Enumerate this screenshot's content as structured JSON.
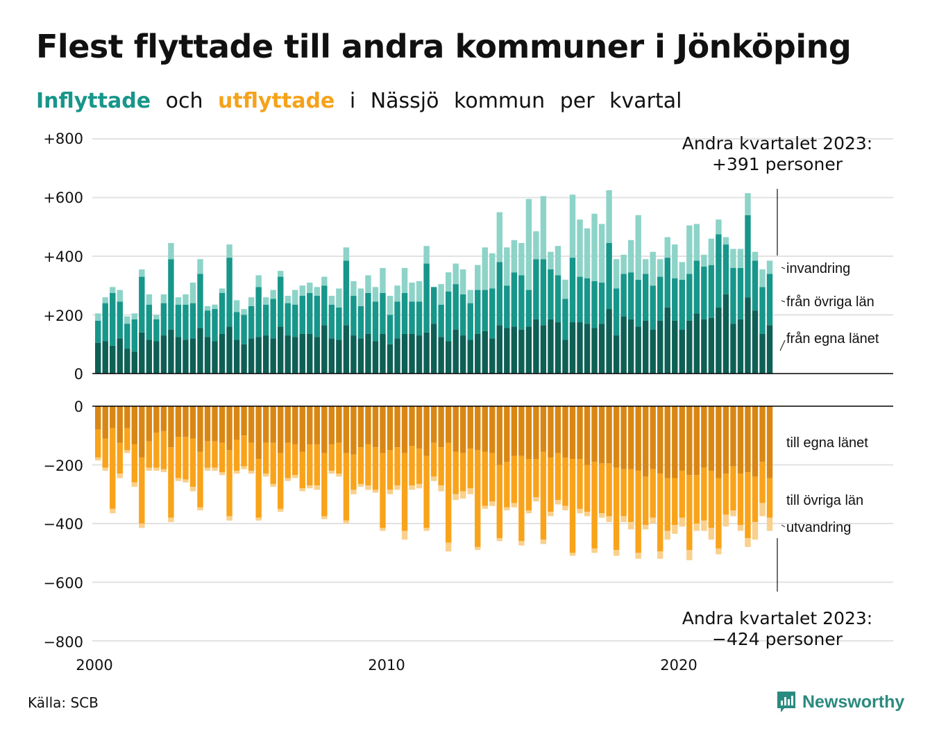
{
  "title": "Flest flyttade till andra kommuner i Jönköping",
  "subtitle": {
    "in_word": "Inflyttade",
    "and_word": "och",
    "out_word": "utflyttade",
    "rest_words": [
      "i",
      "Nässjö",
      "kommun",
      "per",
      "kvartal"
    ]
  },
  "source": "Källa: SCB",
  "logo_text": "Newsworthy",
  "colors": {
    "in_own": "#0e5f55",
    "in_other": "#17968a",
    "in_immig": "#8dd3c8",
    "out_own": "#d98714",
    "out_other": "#f9a31b",
    "out_emig": "#f9d08c",
    "grid": "#e2e2e2",
    "axis": "#000000"
  },
  "chart_data": {
    "type": "bar",
    "stacked": true,
    "x_ticks": [
      "2000",
      "2010",
      "2020"
    ],
    "y_ticks": [
      "+800",
      "+600",
      "+400",
      "+200",
      "0",
      "0",
      "−200",
      "−400",
      "−600",
      "−800"
    ],
    "top_ylim": [
      0,
      800
    ],
    "bottom_ylim": [
      -800,
      0
    ],
    "x_start": "2000 Q1",
    "x_end": "2023 Q2",
    "top_series_labels": [
      "invandring",
      "från övriga län",
      "från egna länet"
    ],
    "bottom_series_labels": [
      "till egna länet",
      "till övriga län",
      "utvandring"
    ],
    "annotation_top": [
      "Andra kvartalet 2023:",
      "+391 personer"
    ],
    "annotation_bottom": [
      "Andra kvartalet 2023:",
      "−424 personer"
    ],
    "inflow": {
      "from_own_county": [
        105,
        110,
        95,
        120,
        85,
        75,
        140,
        115,
        110,
        130,
        150,
        125,
        115,
        120,
        155,
        125,
        110,
        135,
        160,
        115,
        100,
        120,
        125,
        130,
        120,
        160,
        130,
        125,
        135,
        135,
        125,
        165,
        120,
        115,
        165,
        130,
        120,
        135,
        110,
        135,
        100,
        120,
        135,
        135,
        130,
        140,
        170,
        125,
        110,
        150,
        130,
        115,
        135,
        145,
        120,
        165,
        155,
        160,
        150,
        160,
        185,
        165,
        185,
        175,
        115,
        175,
        175,
        170,
        155,
        170,
        220,
        130,
        195,
        185,
        160,
        180,
        150,
        180,
        225,
        180,
        150,
        180,
        205,
        185,
        190,
        225,
        270,
        170,
        185,
        260,
        215,
        135,
        165
      ],
      "from_other_counties": [
        75,
        130,
        180,
        125,
        85,
        110,
        190,
        120,
        75,
        110,
        240,
        110,
        120,
        120,
        185,
        90,
        110,
        140,
        235,
        95,
        100,
        110,
        170,
        105,
        135,
        170,
        110,
        110,
        130,
        140,
        140,
        135,
        115,
        110,
        220,
        135,
        110,
        140,
        135,
        140,
        100,
        125,
        140,
        110,
        115,
        235,
        125,
        110,
        170,
        155,
        140,
        125,
        150,
        140,
        170,
        215,
        145,
        185,
        185,
        125,
        205,
        225,
        170,
        160,
        140,
        220,
        155,
        155,
        160,
        140,
        225,
        160,
        145,
        160,
        160,
        160,
        150,
        150,
        170,
        145,
        170,
        160,
        180,
        180,
        180,
        250,
        170,
        190,
        175,
        280,
        170,
        160,
        175
      ],
      "immigration": [
        25,
        20,
        20,
        40,
        25,
        20,
        25,
        35,
        15,
        30,
        55,
        25,
        35,
        70,
        50,
        15,
        15,
        15,
        45,
        40,
        20,
        30,
        40,
        25,
        30,
        20,
        25,
        50,
        35,
        35,
        30,
        30,
        30,
        65,
        45,
        50,
        60,
        60,
        50,
        85,
        65,
        55,
        85,
        65,
        70,
        60,
        0,
        70,
        65,
        70,
        85,
        45,
        85,
        145,
        120,
        170,
        130,
        110,
        110,
        310,
        95,
        215,
        60,
        100,
        65,
        215,
        195,
        170,
        230,
        200,
        180,
        100,
        65,
        110,
        220,
        50,
        115,
        60,
        70,
        115,
        60,
        165,
        125,
        40,
        90,
        50,
        25,
        65,
        65,
        75,
        30,
        60,
        45
      ],
      "total_q2_2023": 391
    },
    "outflow": {
      "to_own_county": [
        -80,
        -110,
        -75,
        -125,
        -75,
        -130,
        -175,
        -120,
        -90,
        -85,
        -140,
        -105,
        -105,
        -110,
        -155,
        -120,
        -120,
        -125,
        -150,
        -115,
        -100,
        -125,
        -180,
        -125,
        -125,
        -160,
        -125,
        -130,
        -155,
        -130,
        -130,
        -160,
        -130,
        -125,
        -160,
        -165,
        -140,
        -130,
        -140,
        -160,
        -150,
        -140,
        -160,
        -135,
        -145,
        -170,
        -125,
        -140,
        -125,
        -155,
        -160,
        -145,
        -150,
        -155,
        -160,
        -200,
        -190,
        -170,
        -170,
        -180,
        -180,
        -155,
        -175,
        -160,
        -175,
        -180,
        -180,
        -200,
        -190,
        -195,
        -195,
        -210,
        -215,
        -215,
        -220,
        -240,
        -215,
        -230,
        -245,
        -245,
        -220,
        -235,
        -235,
        -210,
        -220,
        -245,
        -230,
        -205,
        -230,
        -225,
        -240,
        -190,
        -245
      ],
      "to_other_counties": [
        -95,
        -100,
        -275,
        -105,
        -75,
        -130,
        -225,
        -90,
        -120,
        -130,
        -240,
        -140,
        -145,
        -165,
        -190,
        -90,
        -90,
        -100,
        -225,
        -105,
        -105,
        -95,
        -200,
        -105,
        -140,
        -190,
        -120,
        -105,
        -125,
        -140,
        -140,
        -215,
        -90,
        -105,
        -230,
        -120,
        -125,
        -140,
        -145,
        -255,
        -135,
        -130,
        -265,
        -135,
        -120,
        -245,
        -115,
        -130,
        -340,
        -145,
        -130,
        -135,
        -330,
        -185,
        -165,
        -250,
        -155,
        -160,
        -290,
        -175,
        -130,
        -300,
        -185,
        -160,
        -165,
        -320,
        -170,
        -160,
        -295,
        -170,
        -180,
        -280,
        -160,
        -180,
        -280,
        -165,
        -165,
        -265,
        -180,
        -160,
        -160,
        -255,
        -165,
        -180,
        -195,
        -240,
        -140,
        -150,
        -175,
        -225,
        -155,
        -140,
        -135
      ],
      "emigration": [
        -10,
        -10,
        -15,
        -15,
        -10,
        -15,
        -15,
        -10,
        -10,
        -10,
        -15,
        -10,
        -10,
        -15,
        -10,
        -10,
        -10,
        -10,
        -15,
        -10,
        -10,
        -10,
        -10,
        -10,
        -10,
        -10,
        -10,
        -10,
        -10,
        -10,
        -15,
        -10,
        -10,
        -10,
        -10,
        -15,
        -10,
        -15,
        -10,
        -10,
        -15,
        -15,
        -30,
        -15,
        -15,
        -10,
        -15,
        -20,
        -30,
        -20,
        -25,
        -20,
        -10,
        -10,
        -15,
        -10,
        -10,
        -15,
        -15,
        -10,
        -15,
        -15,
        -15,
        -15,
        -15,
        -10,
        -15,
        -15,
        -15,
        -15,
        -20,
        -20,
        -20,
        -25,
        -20,
        -15,
        -20,
        -25,
        -30,
        -30,
        -30,
        -35,
        -25,
        -35,
        -40,
        -20,
        -40,
        -20,
        -20,
        -30,
        -60,
        -45,
        -45
      ],
      "total_q2_2023": -424
    }
  }
}
